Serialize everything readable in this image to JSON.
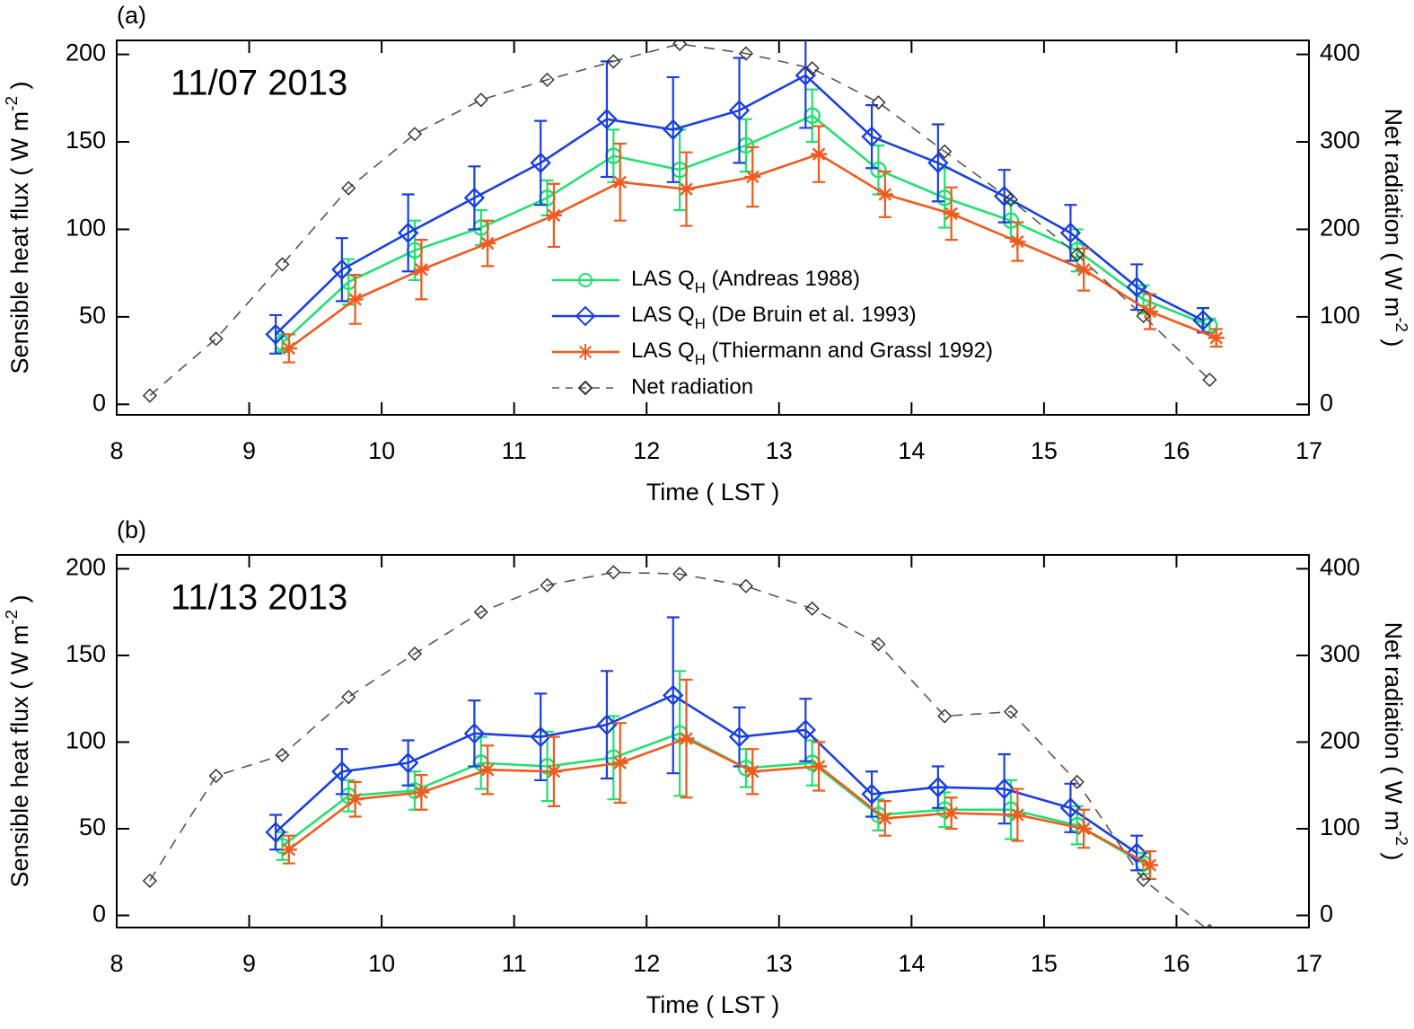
{
  "chart_data": [
    {
      "type": "line",
      "panel_label": "(a)",
      "annotation": "11/07 2013",
      "x_label": "Time ( LST )",
      "y_label": "Sensible heat flux ( W m-2 )",
      "y2_label": "Net radiation ( W m-2 )",
      "xlim": [
        8,
        17
      ],
      "xticks": [
        8,
        9,
        10,
        11,
        12,
        13,
        14,
        15,
        16,
        17
      ],
      "ylim": [
        -6,
        208
      ],
      "yticks": [
        0,
        50,
        100,
        150,
        200
      ],
      "y2lim": [
        -12,
        416
      ],
      "y2ticks": [
        0,
        100,
        200,
        300,
        400
      ],
      "legend": true,
      "series": [
        {
          "name": "LAS QH (Andreas 1988)",
          "color": "#22e070",
          "marker": "circle",
          "x": [
            9.25,
            9.75,
            10.25,
            10.75,
            11.25,
            11.75,
            12.25,
            12.75,
            13.25,
            13.75,
            14.25,
            14.75,
            15.25,
            15.75,
            16.25
          ],
          "values": [
            35,
            70,
            88,
            101,
            118,
            142,
            134,
            148,
            165,
            134,
            118,
            105,
            88,
            60,
            45
          ],
          "errors": [
            5,
            13,
            17,
            10,
            10,
            15,
            23,
            15,
            15,
            14,
            17,
            10,
            12,
            8,
            4
          ]
        },
        {
          "name": "LAS QH (De Bruin et al. 1993)",
          "color": "#1a3fe0",
          "marker": "diamond",
          "x": [
            9.2,
            9.7,
            10.2,
            10.7,
            11.2,
            11.7,
            12.2,
            12.7,
            13.2,
            13.7,
            14.2,
            14.7,
            15.2,
            15.7,
            16.2
          ],
          "values": [
            40,
            77,
            98,
            118,
            138,
            163,
            157,
            168,
            188,
            153,
            138,
            119,
            98,
            67,
            48
          ],
          "errors": [
            11,
            18,
            22,
            18,
            24,
            33,
            30,
            30,
            30,
            18,
            22,
            15,
            16,
            13,
            7
          ]
        },
        {
          "name": "LAS QH (Thiermann and Grassl 1992)",
          "color": "#f05a1e",
          "marker": "asterisk",
          "x": [
            9.3,
            9.8,
            10.3,
            10.8,
            11.3,
            11.8,
            12.3,
            12.8,
            13.3,
            13.8,
            14.3,
            14.8,
            15.3,
            15.8,
            16.3
          ],
          "values": [
            32,
            60,
            77,
            92,
            108,
            127,
            123,
            130,
            143,
            120,
            109,
            93,
            77,
            53,
            38
          ],
          "errors": [
            8,
            14,
            17,
            13,
            18,
            22,
            21,
            17,
            16,
            13,
            15,
            11,
            12,
            10,
            5
          ]
        },
        {
          "name": "Net radiation",
          "color": "#555555",
          "marker": "small-diamond",
          "dashed": true,
          "axis": "y2",
          "x": [
            8.25,
            8.75,
            9.25,
            9.75,
            10.25,
            10.75,
            11.25,
            11.75,
            12.25,
            12.75,
            13.25,
            13.75,
            14.25,
            14.75,
            15.25,
            15.75,
            16.25
          ],
          "values": [
            10,
            75,
            160,
            247,
            309,
            348,
            371,
            392,
            412,
            401,
            384,
            345,
            289,
            234,
            171,
            101,
            28
          ]
        }
      ]
    },
    {
      "type": "line",
      "panel_label": "(b)",
      "annotation": "11/13 2013",
      "x_label": "Time ( LST )",
      "y_label": "Sensible heat flux ( W m-2 )",
      "y2_label": "Net radiation ( W m-2 )",
      "xlim": [
        8,
        17
      ],
      "xticks": [
        8,
        9,
        10,
        11,
        12,
        13,
        14,
        15,
        16,
        17
      ],
      "ylim": [
        -7,
        208
      ],
      "yticks": [
        0,
        50,
        100,
        150,
        200
      ],
      "y2lim": [
        -14,
        416
      ],
      "y2ticks": [
        0,
        100,
        200,
        300,
        400
      ],
      "legend": false,
      "series": [
        {
          "color": "#22e070",
          "marker": "circle",
          "x": [
            9.25,
            9.75,
            10.25,
            10.75,
            11.25,
            11.75,
            12.25,
            12.75,
            13.25,
            13.75,
            14.25,
            14.75,
            15.25,
            15.75
          ],
          "values": [
            40,
            69,
            72,
            88,
            86,
            91,
            105,
            85,
            88,
            58,
            61,
            61,
            52,
            30
          ],
          "errors": [
            8,
            9,
            11,
            15,
            20,
            24,
            36,
            11,
            13,
            9,
            10,
            17,
            11,
            6
          ]
        },
        {
          "color": "#1a3fe0",
          "marker": "diamond",
          "x": [
            9.2,
            9.7,
            10.2,
            10.7,
            11.2,
            11.7,
            12.2,
            12.7,
            13.2,
            13.7,
            14.2,
            14.7,
            15.2,
            15.7
          ],
          "values": [
            48,
            83,
            88,
            105,
            103,
            110,
            127,
            103,
            107,
            70,
            74,
            73,
            62,
            36
          ],
          "errors": [
            10,
            13,
            13,
            19,
            25,
            31,
            45,
            17,
            18,
            13,
            12,
            20,
            14,
            10
          ]
        },
        {
          "color": "#f05a1e",
          "marker": "asterisk",
          "x": [
            9.3,
            9.8,
            10.3,
            10.8,
            11.3,
            11.8,
            12.3,
            12.8,
            13.3,
            13.8,
            14.3,
            14.8,
            15.3,
            15.8
          ],
          "values": [
            38,
            67,
            71,
            84,
            83,
            88,
            102,
            83,
            86,
            56,
            59,
            58,
            50,
            29
          ],
          "errors": [
            8,
            10,
            10,
            14,
            20,
            23,
            34,
            13,
            14,
            10,
            9,
            15,
            11,
            8
          ]
        },
        {
          "color": "#555555",
          "marker": "small-diamond",
          "dashed": true,
          "axis": "y2",
          "x": [
            8.25,
            8.75,
            9.25,
            9.75,
            10.25,
            10.75,
            11.25,
            11.75,
            12.25,
            12.75,
            13.25,
            13.75,
            14.25,
            14.75,
            15.25,
            15.75,
            16.25
          ],
          "values": [
            40,
            161,
            185,
            252,
            302,
            350,
            381,
            396,
            394,
            380,
            354,
            313,
            230,
            235,
            154,
            41,
            -18
          ]
        }
      ]
    }
  ]
}
